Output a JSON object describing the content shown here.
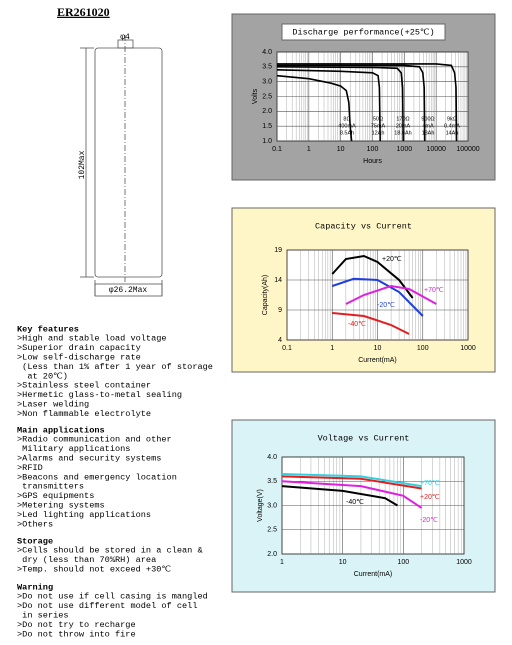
{
  "header": {
    "title": "ER261020"
  },
  "drawing": {
    "pin": "φ4",
    "length": "102Max",
    "diameter": "φ26.2Max"
  },
  "sections": [
    {
      "heading": "Key features",
      "lines": [
        ">High and stable load voltage",
        ">Superior drain capacity",
        ">Low self-discharge rate",
        " (Less than 1% after 1 year of storage",
        "  at 20℃)",
        ">Stainless steel container",
        ">Hermetic glass-to-metal sealing",
        ">Laser welding",
        ">Non flammable electrolyte"
      ]
    },
    {
      "heading": "Main applications",
      "lines": [
        ">Radio communication and other",
        " Military applications",
        ">Alarms and security systems",
        ">RFID",
        ">Beacons and emergency location",
        " transmitters",
        ">GPS equipments",
        ">Metering systems",
        ">Led lighting applications",
        ">Others"
      ]
    },
    {
      "heading": "Storage",
      "lines": [
        ">Cells should be stored in a clean &",
        " dry (less than 70%RH) area",
        ">Temp. should not exceed +30℃"
      ]
    },
    {
      "heading": "Warning",
      "lines": [
        ">Do not use if cell casing is mangled",
        ">Do not use different model of cell",
        " in series",
        ">Do not try to recharge",
        ">Do not throw into fire"
      ]
    }
  ],
  "chart_data": [
    {
      "type": "line",
      "title": "Discharge performance(+25℃)",
      "x_label": "Hours",
      "y_label": "Volts",
      "log_x": true,
      "grid": true,
      "xlim": [
        0.1,
        100000
      ],
      "xticks": [
        0.1,
        1,
        10,
        100,
        1000,
        10000,
        100000
      ],
      "ylim": [
        1,
        4
      ],
      "yticks": [
        {
          "value": 1,
          "label": "1.0"
        },
        {
          "value": 1.5,
          "label": "1.5"
        },
        {
          "value": 2,
          "label": "2.0"
        },
        {
          "value": 2.5,
          "label": "2.5"
        },
        {
          "value": 3,
          "label": "3.0"
        },
        {
          "value": 3.5,
          "label": "3.5"
        },
        {
          "value": 4,
          "label": "4.0"
        }
      ],
      "series": [
        {
          "name": "8Ω",
          "current": "400mA",
          "capacity": "8.5Ah",
          "color": "#000000",
          "x": [
            0.1,
            1,
            5,
            10,
            15,
            18,
            20,
            22
          ],
          "values": [
            3.2,
            3.1,
            2.95,
            2.85,
            2.7,
            2.3,
            1.5,
            1.0
          ]
        },
        {
          "name": "50Ω",
          "current": "75mA",
          "capacity": "12Ah",
          "color": "#000000",
          "x": [
            0.1,
            10,
            100,
            150,
            165,
            175
          ],
          "values": [
            3.4,
            3.35,
            3.3,
            3.2,
            2.8,
            1.0
          ]
        },
        {
          "name": "170Ω",
          "current": "20mA",
          "capacity": "18.6Ah",
          "color": "#000000",
          "x": [
            0.1,
            100,
            600,
            800,
            880,
            920
          ],
          "values": [
            3.5,
            3.48,
            3.45,
            3.3,
            2.8,
            1.0
          ]
        },
        {
          "name": "900Ω",
          "current": "4mA",
          "capacity": "18Ah",
          "color": "#000000",
          "x": [
            0.1,
            1000,
            3000,
            3800,
            4200,
            4400
          ],
          "values": [
            3.55,
            3.55,
            3.5,
            3.3,
            2.8,
            1.0
          ]
        },
        {
          "name": "9kΩ",
          "current": "0.4mA",
          "capacity": "14Ah",
          "color": "#000000",
          "x": [
            0.1,
            10000,
            30000,
            38000,
            42000,
            44000
          ],
          "values": [
            3.6,
            3.6,
            3.55,
            3.3,
            2.8,
            1.0
          ]
        }
      ]
    },
    {
      "type": "line",
      "title": "Capacity vs Current",
      "x_label": "Current(mA)",
      "y_label": "Capacity(Ah)",
      "log_x": true,
      "grid": true,
      "xlim": [
        0.1,
        1000
      ],
      "xticks": [
        0.1,
        1,
        10,
        100,
        1000
      ],
      "ylim": [
        4,
        19
      ],
      "yticks": [
        4,
        9,
        14,
        19
      ],
      "series": [
        {
          "name": "+20℃",
          "color": "#000000",
          "x": [
            1,
            2,
            5,
            10,
            30,
            60
          ],
          "values": [
            15,
            17.5,
            18,
            17,
            14,
            11
          ]
        },
        {
          "name": "-20℃",
          "color": "#1f3fdf",
          "x": [
            1,
            3,
            10,
            30,
            100
          ],
          "values": [
            13,
            14.2,
            14,
            12,
            8
          ]
        },
        {
          "name": "+70℃",
          "color": "#e020e0",
          "x": [
            2,
            5,
            20,
            50,
            200
          ],
          "values": [
            10,
            11.5,
            13,
            12.5,
            10
          ]
        },
        {
          "name": "-40℃",
          "color": "#e02020",
          "x": [
            1,
            5,
            20,
            50
          ],
          "values": [
            8.5,
            8,
            6.5,
            5
          ]
        }
      ]
    },
    {
      "type": "line",
      "title": "Voltage vs Current",
      "x_label": "Current(mA)",
      "y_label": "Voltage(V)",
      "log_x": true,
      "grid": true,
      "xlim": [
        1,
        1000
      ],
      "xticks": [
        1,
        10,
        100,
        1000
      ],
      "ylim": [
        2,
        4
      ],
      "yticks": [
        {
          "value": 2,
          "label": "2.0"
        },
        {
          "value": 2.5,
          "label": "2.5"
        },
        {
          "value": 3,
          "label": "3.0"
        },
        {
          "value": 3.5,
          "label": "3.5"
        },
        {
          "value": 4,
          "label": "4.0"
        }
      ],
      "series": [
        {
          "name": "+70℃",
          "color": "#30d0e0",
          "x": [
            1,
            20,
            200
          ],
          "values": [
            3.65,
            3.6,
            3.4
          ]
        },
        {
          "name": "+20℃",
          "color": "#e02020",
          "x": [
            1,
            20,
            200
          ],
          "values": [
            3.6,
            3.55,
            3.35
          ]
        },
        {
          "name": "-20℃",
          "color": "#e020e0",
          "x": [
            1,
            20,
            100,
            200
          ],
          "values": [
            3.5,
            3.4,
            3.2,
            2.95
          ]
        },
        {
          "name": "-40℃",
          "color": "#000000",
          "x": [
            1,
            10,
            50,
            80
          ],
          "values": [
            3.4,
            3.3,
            3.15,
            3.0
          ]
        }
      ]
    }
  ]
}
